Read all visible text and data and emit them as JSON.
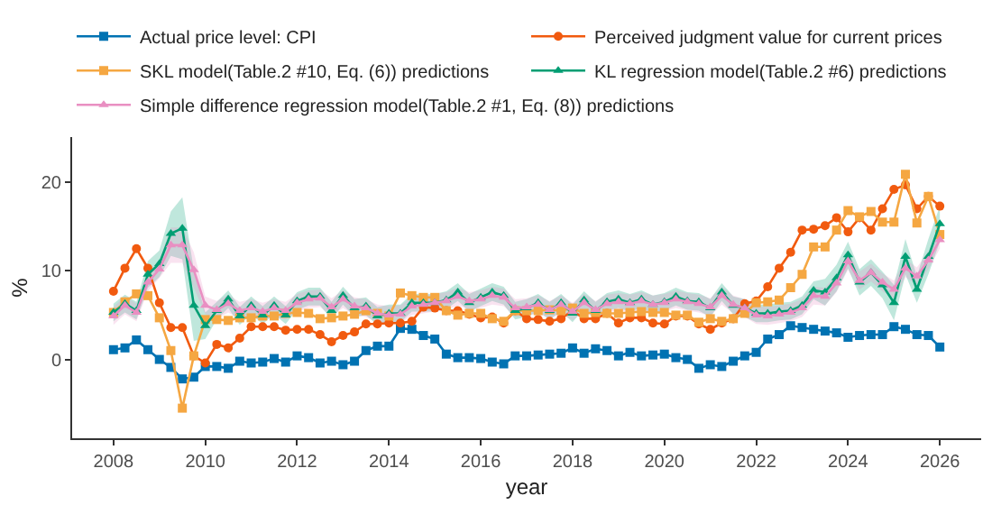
{
  "chart_data": {
    "type": "line",
    "xlabel": "year",
    "ylabel": "%",
    "x": [
      2008,
      2008.25,
      2008.5,
      2008.75,
      2009,
      2009.25,
      2009.5,
      2009.75,
      2010,
      2010.25,
      2010.5,
      2010.75,
      2011,
      2011.25,
      2011.5,
      2011.75,
      2012,
      2012.25,
      2012.5,
      2012.75,
      2013,
      2013.25,
      2013.5,
      2013.75,
      2014,
      2014.25,
      2014.5,
      2014.75,
      2015,
      2015.25,
      2015.5,
      2015.75,
      2016,
      2016.25,
      2016.5,
      2016.75,
      2017,
      2017.25,
      2017.5,
      2017.75,
      2018,
      2018.25,
      2018.5,
      2018.75,
      2019,
      2019.25,
      2019.5,
      2019.75,
      2020,
      2020.25,
      2020.5,
      2020.75,
      2021,
      2021.25,
      2021.5,
      2021.75,
      2022,
      2022.25,
      2022.5,
      2022.75,
      2023,
      2023.25,
      2023.5,
      2023.75,
      2024,
      2024.25,
      2024.5,
      2024.75,
      2025,
      2025.25,
      2025.5,
      2025.75,
      2026
    ],
    "series": [
      {
        "name": "Actual price level: CPI",
        "color": "#0072b2",
        "marker": "square",
        "values": [
          1.1,
          1.3,
          2.2,
          1.1,
          0,
          -0.9,
          -2.2,
          -2.0,
          -0.8,
          -0.8,
          -1.0,
          -0.2,
          -0.4,
          -0.3,
          0.1,
          -0.3,
          0.4,
          0.2,
          -0.4,
          -0.2,
          -0.6,
          -0.2,
          1.0,
          1.5,
          1.5,
          3.5,
          3.4,
          2.7,
          2.3,
          0.6,
          0.2,
          0.2,
          0.1,
          -0.3,
          -0.5,
          0.4,
          0.4,
          0.5,
          0.6,
          0.7,
          1.3,
          0.7,
          1.2,
          1.0,
          0.4,
          0.8,
          0.4,
          0.5,
          0.6,
          0.2,
          0.0,
          -1.0,
          -0.6,
          -0.8,
          -0.2,
          0.4,
          0.8,
          2.3,
          2.8,
          3.8,
          3.6,
          3.4,
          3.2,
          3.0,
          2.5,
          2.7,
          2.8,
          2.8,
          3.7,
          3.4,
          2.8,
          2.7,
          1.4
        ]
      },
      {
        "name": "Perceived judgment value for current prices",
        "color": "#f15a0f",
        "marker": "circle",
        "values": [
          7.7,
          10.3,
          12.5,
          10.3,
          6.4,
          3.6,
          3.6,
          0.4,
          -0.4,
          1.7,
          1.3,
          2.4,
          3.7,
          3.7,
          3.7,
          3.3,
          3.4,
          3.4,
          2.8,
          2.0,
          2.7,
          3.1,
          4.0,
          4.0,
          4.1,
          4.1,
          4.3,
          5.9,
          5.8,
          5.5,
          5.5,
          5.1,
          4.7,
          4.8,
          4.1,
          5.5,
          4.6,
          4.5,
          4.3,
          4.6,
          5.5,
          4.6,
          4.6,
          5.2,
          4.1,
          4.7,
          4.7,
          4.1,
          4.0,
          4.9,
          4.9,
          4.0,
          3.4,
          4.1,
          4.6,
          6.3,
          6.6,
          8.2,
          10.3,
          12.1,
          14.6,
          14.7,
          15.1,
          16.0,
          14.4,
          16.0,
          14.6,
          17.0,
          19.2,
          19.7,
          17.0,
          18.4,
          17.3
        ]
      },
      {
        "name": "SKL model(Table.2 #10, Eq. (6)) predictions",
        "color": "#f5a742",
        "marker": "square",
        "values": [
          5.3,
          6.5,
          7.4,
          7.2,
          4.7,
          1.0,
          -5.5,
          0.4,
          4.5,
          4.5,
          4.4,
          4.7,
          4.7,
          4.9,
          4.9,
          5.2,
          5.3,
          5.2,
          4.6,
          4.7,
          4.9,
          5.1,
          5.5,
          5.2,
          4.9,
          7.5,
          7.2,
          7.0,
          7.0,
          5.5,
          5.0,
          5.2,
          5.2,
          4.6,
          4.3,
          5.5,
          5.5,
          5.5,
          5.6,
          5.5,
          5.8,
          5.2,
          5.3,
          5.2,
          5.2,
          5.3,
          5.4,
          5.3,
          5.3,
          5.0,
          5.0,
          4.2,
          4.6,
          4.3,
          4.6,
          5.2,
          6.4,
          6.5,
          6.7,
          8.1,
          9.6,
          12.7,
          12.7,
          14.6,
          16.8,
          16.1,
          16.7,
          15.5,
          15.5,
          20.9,
          15.4,
          18.4,
          14.1
        ]
      },
      {
        "name": "KL regression model(Table.2 #6) predictions",
        "color": "#009e73",
        "marker": "triangle",
        "values": [
          5.3,
          6.3,
          5.5,
          9.6,
          10.8,
          14.2,
          14.8,
          6.1,
          3.8,
          5.5,
          6.8,
          4.9,
          6.1,
          5.0,
          6.1,
          5.0,
          6.6,
          7.1,
          7.1,
          5.5,
          7.2,
          5.8,
          6.0,
          4.9,
          5.2,
          5.2,
          6.4,
          6.4,
          6.4,
          6.7,
          7.6,
          6.4,
          7.0,
          7.6,
          7.2,
          5.5,
          5.8,
          6.4,
          5.5,
          6.4,
          5.2,
          6.7,
          5.5,
          6.5,
          6.8,
          6.4,
          6.8,
          6.2,
          6.5,
          7.1,
          6.6,
          6.5,
          5.8,
          7.6,
          6.1,
          5.8,
          5.2,
          5.2,
          5.4,
          5.5,
          6.1,
          7.8,
          7.6,
          9.2,
          11.8,
          8.7,
          9.8,
          8.4,
          6.4,
          11.6,
          7.9,
          11.6,
          15.3
        ],
        "lower": [
          4.3,
          5.3,
          4.5,
          8.1,
          9.3,
          11.7,
          11.3,
          2.1,
          2.3,
          4.5,
          5.8,
          3.9,
          5.1,
          4.0,
          5.1,
          4.0,
          5.6,
          6.1,
          6.1,
          4.5,
          6.2,
          4.8,
          5.0,
          3.9,
          4.2,
          4.2,
          5.4,
          5.4,
          5.4,
          5.7,
          6.6,
          5.4,
          6.0,
          6.6,
          6.2,
          4.5,
          4.8,
          5.4,
          4.5,
          5.4,
          4.2,
          5.7,
          4.5,
          5.5,
          5.8,
          5.4,
          5.8,
          5.2,
          5.5,
          6.1,
          5.6,
          5.5,
          4.8,
          6.6,
          5.1,
          4.8,
          4.2,
          4.2,
          4.4,
          4.5,
          5.1,
          6.8,
          6.1,
          7.7,
          10.3,
          7.2,
          8.3,
          6.9,
          4.4,
          9.6,
          6.4,
          9.6,
          13.3
        ],
        "upper": [
          6.3,
          7.3,
          6.5,
          11.1,
          12.3,
          16.7,
          18.3,
          10.1,
          5.3,
          6.5,
          7.8,
          5.9,
          7.1,
          6.0,
          7.1,
          6.0,
          7.6,
          8.1,
          8.1,
          6.5,
          8.2,
          6.8,
          7.0,
          5.9,
          6.2,
          6.2,
          7.4,
          7.4,
          7.4,
          7.7,
          8.6,
          7.4,
          8.0,
          8.6,
          8.2,
          6.5,
          6.8,
          7.4,
          6.5,
          7.4,
          6.2,
          7.7,
          6.5,
          7.5,
          7.8,
          7.4,
          7.8,
          7.2,
          7.5,
          8.1,
          7.6,
          7.5,
          6.8,
          8.6,
          7.1,
          6.8,
          6.2,
          6.2,
          6.4,
          6.5,
          7.1,
          8.8,
          9.1,
          10.7,
          13.3,
          10.2,
          11.3,
          9.9,
          8.4,
          13.6,
          9.4,
          13.6,
          17.3
        ]
      },
      {
        "name": "Simple difference regression model(Table.2 #1, Eq. (8)) predictions",
        "color": "#e98fc2",
        "marker": "triangle",
        "values": [
          4.9,
          6.1,
          5.3,
          8.7,
          10.2,
          12.9,
          12.9,
          10.1,
          6.1,
          5.6,
          6.3,
          5.5,
          5.8,
          5.4,
          5.8,
          5.5,
          6.4,
          6.8,
          6.9,
          5.9,
          6.8,
          6.0,
          5.8,
          5.2,
          5.0,
          5.1,
          6.0,
          6.2,
          6.4,
          6.6,
          7.1,
          6.6,
          6.8,
          7.2,
          7.0,
          5.8,
          5.9,
          6.2,
          5.6,
          6.2,
          5.4,
          6.4,
          5.6,
          6.3,
          6.5,
          6.3,
          6.6,
          6.2,
          6.4,
          6.8,
          6.5,
          6.3,
          5.9,
          7.2,
          6.2,
          5.8,
          5.0,
          4.9,
          5.1,
          5.3,
          5.8,
          7.2,
          7.1,
          8.6,
          11.1,
          8.9,
          9.8,
          8.7,
          7.9,
          10.3,
          9.4,
          11.2,
          13.5
        ],
        "lower": [
          3.9,
          5.1,
          4.3,
          7.7,
          9.2,
          10.9,
          10.9,
          8.1,
          5.1,
          4.6,
          5.3,
          4.5,
          4.8,
          4.4,
          4.8,
          4.5,
          5.4,
          5.8,
          5.9,
          4.9,
          5.8,
          5.0,
          4.8,
          4.2,
          4.0,
          4.1,
          5.0,
          5.2,
          5.4,
          5.6,
          6.1,
          5.6,
          5.8,
          6.2,
          6.0,
          4.8,
          4.9,
          5.2,
          4.6,
          5.2,
          4.4,
          5.4,
          4.6,
          5.3,
          5.5,
          5.3,
          5.6,
          5.2,
          5.4,
          5.8,
          5.5,
          5.3,
          4.9,
          6.2,
          5.2,
          4.8,
          4.0,
          3.9,
          4.1,
          4.3,
          4.8,
          6.2,
          6.1,
          7.6,
          10.1,
          7.9,
          8.8,
          7.7,
          6.9,
          9.3,
          8.4,
          10.2,
          12.5
        ],
        "upper": [
          5.9,
          7.1,
          6.3,
          9.7,
          11.2,
          14.9,
          14.9,
          12.1,
          7.1,
          6.6,
          7.3,
          6.5,
          6.8,
          6.4,
          6.8,
          6.5,
          7.4,
          7.8,
          7.9,
          6.9,
          7.8,
          7.0,
          6.8,
          6.2,
          6.0,
          6.1,
          7.0,
          7.2,
          7.4,
          7.6,
          8.1,
          7.6,
          7.8,
          8.2,
          8.0,
          6.8,
          6.9,
          7.2,
          6.6,
          7.2,
          6.4,
          7.4,
          6.6,
          7.3,
          7.5,
          7.3,
          7.6,
          7.2,
          7.4,
          7.8,
          7.5,
          7.3,
          6.9,
          8.2,
          7.2,
          6.8,
          6.0,
          5.9,
          6.1,
          6.3,
          6.8,
          8.2,
          8.1,
          9.6,
          12.1,
          9.9,
          10.8,
          9.7,
          8.9,
          11.3,
          10.4,
          12.2,
          14.5
        ]
      }
    ],
    "xlim": [
      2007.1,
      2026.9
    ],
    "xticks": [
      2008,
      2010,
      2012,
      2014,
      2016,
      2018,
      2020,
      2022,
      2024,
      2026
    ],
    "ylim": [
      -8.9,
      25.1
    ],
    "yticks": [
      0,
      10,
      20
    ],
    "legend": "top",
    "line_style": "solid"
  }
}
